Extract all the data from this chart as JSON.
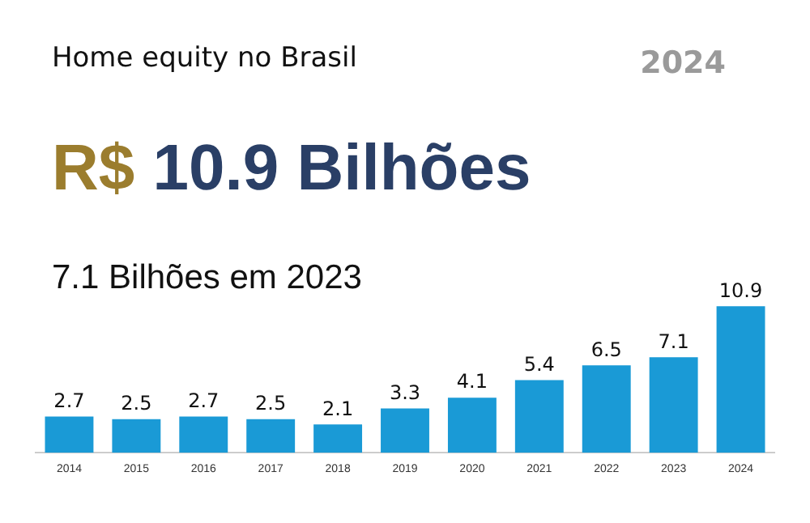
{
  "chart_data": {
    "type": "bar",
    "title": "Home equity no Brasil",
    "subtitle": "7.1 Bilhões em 2023",
    "annotations": [
      "2024",
      "R$",
      "10.9 Bilhões"
    ],
    "categories": [
      "2014",
      "2015",
      "2016",
      "2017",
      "2018",
      "2019",
      "2020",
      "2021",
      "2022",
      "2023",
      "2024"
    ],
    "values": [
      2.7,
      2.5,
      2.7,
      2.5,
      2.1,
      3.3,
      4.1,
      5.4,
      6.5,
      7.1,
      10.9
    ],
    "color": "#1a9ad6",
    "data_labels": true,
    "grid": false,
    "legend": false
  }
}
